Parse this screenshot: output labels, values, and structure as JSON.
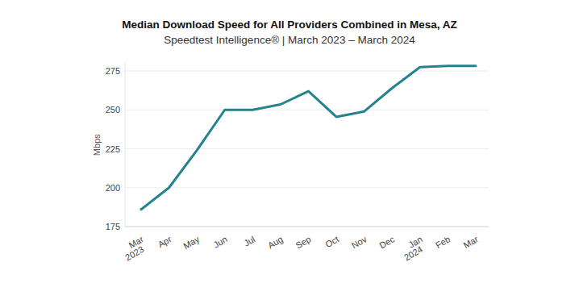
{
  "chart_data": {
    "type": "line",
    "title": "Median Download Speed for All Providers Combined in Mesa, AZ",
    "subtitle": "Speedtest Intelligence® | March 2023 – March 2024",
    "y_label": "Mbps",
    "categories": [
      "Mar 2023",
      "Apr",
      "May",
      "Jun",
      "Jul",
      "Aug",
      "Sep",
      "Oct",
      "Nov",
      "Dec",
      "Jan 2024",
      "Feb",
      "Mar"
    ],
    "values": [
      186,
      200,
      224,
      250,
      250,
      253.5,
      262,
      245.5,
      249,
      264,
      277.5,
      278.3,
      278.2
    ],
    "color": "#23838f",
    "ylim": [
      175,
      280
    ],
    "yticks": [
      175,
      200,
      225,
      250,
      275
    ],
    "grid": true
  }
}
